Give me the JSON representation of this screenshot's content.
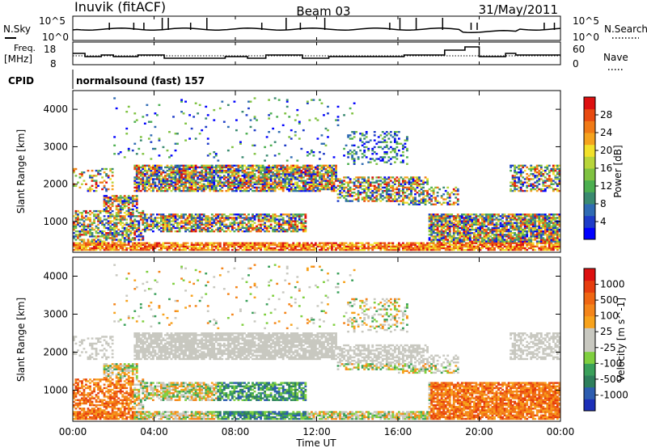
{
  "header": {
    "station": "Inuvik (fitACF)",
    "beam": "Beam 03",
    "date": "31/May/2011"
  },
  "noise_panel": {
    "left_label": "N.Sky",
    "right_label": "N.Search",
    "ticks_left": [
      "10^5",
      "10^0"
    ],
    "ticks_right": [
      "10^5",
      "10^0"
    ]
  },
  "freq_panel": {
    "left_label_1": "Freq.",
    "left_label_2": "[MHz]",
    "right_label": "Nave",
    "ticks_left": [
      "18",
      "8"
    ],
    "ticks_right": [
      "60",
      "0"
    ]
  },
  "cpid": {
    "label": "CPID",
    "text": "normalsound (fast) 157"
  },
  "x_axis": {
    "label": "Time UT",
    "ticks": [
      "00:00",
      "04:00",
      "08:00",
      "12:00",
      "16:00",
      "20:00",
      "00:00"
    ]
  },
  "chart_data": [
    {
      "type": "heatmap",
      "ylabel": "Slant Range [km]",
      "x_range": [
        "00:00",
        "24:00"
      ],
      "ylim": [
        180,
        4500
      ],
      "yticks": [
        1000,
        2000,
        3000,
        4000
      ],
      "colorbar": {
        "label": "Power [dB]",
        "ticks": [
          "28",
          "24",
          "20",
          "16",
          "12",
          "8",
          "4"
        ],
        "colors": [
          "#0000ff",
          "#1e3cc8",
          "#2f6bb3",
          "#3a8a70",
          "#4caf50",
          "#7fc241",
          "#b8d53a",
          "#f2e12a",
          "#f5a31e",
          "#f07a16",
          "#e84a10",
          "#dd1010"
        ]
      }
    },
    {
      "type": "heatmap",
      "ylabel": "Slant Range [km]",
      "x_range": [
        "00:00",
        "24:00"
      ],
      "ylim": [
        180,
        4500
      ],
      "yticks": [
        1000,
        2000,
        3000,
        4000
      ],
      "colorbar": {
        "label": "Velocity [m s^-1]",
        "ticks": [
          "1000",
          "500",
          "100",
          "25",
          "-25",
          "-100",
          "-500",
          "-1000"
        ],
        "colors": [
          "#1c2fb8",
          "#2d5db0",
          "#2e7f5c",
          "#3aa05a",
          "#7fcf3f",
          "#c8c8c0",
          "#c8c8c0",
          "#f7a21c",
          "#f4851a",
          "#ef6612",
          "#e63d0e",
          "#dd1010"
        ]
      }
    }
  ]
}
